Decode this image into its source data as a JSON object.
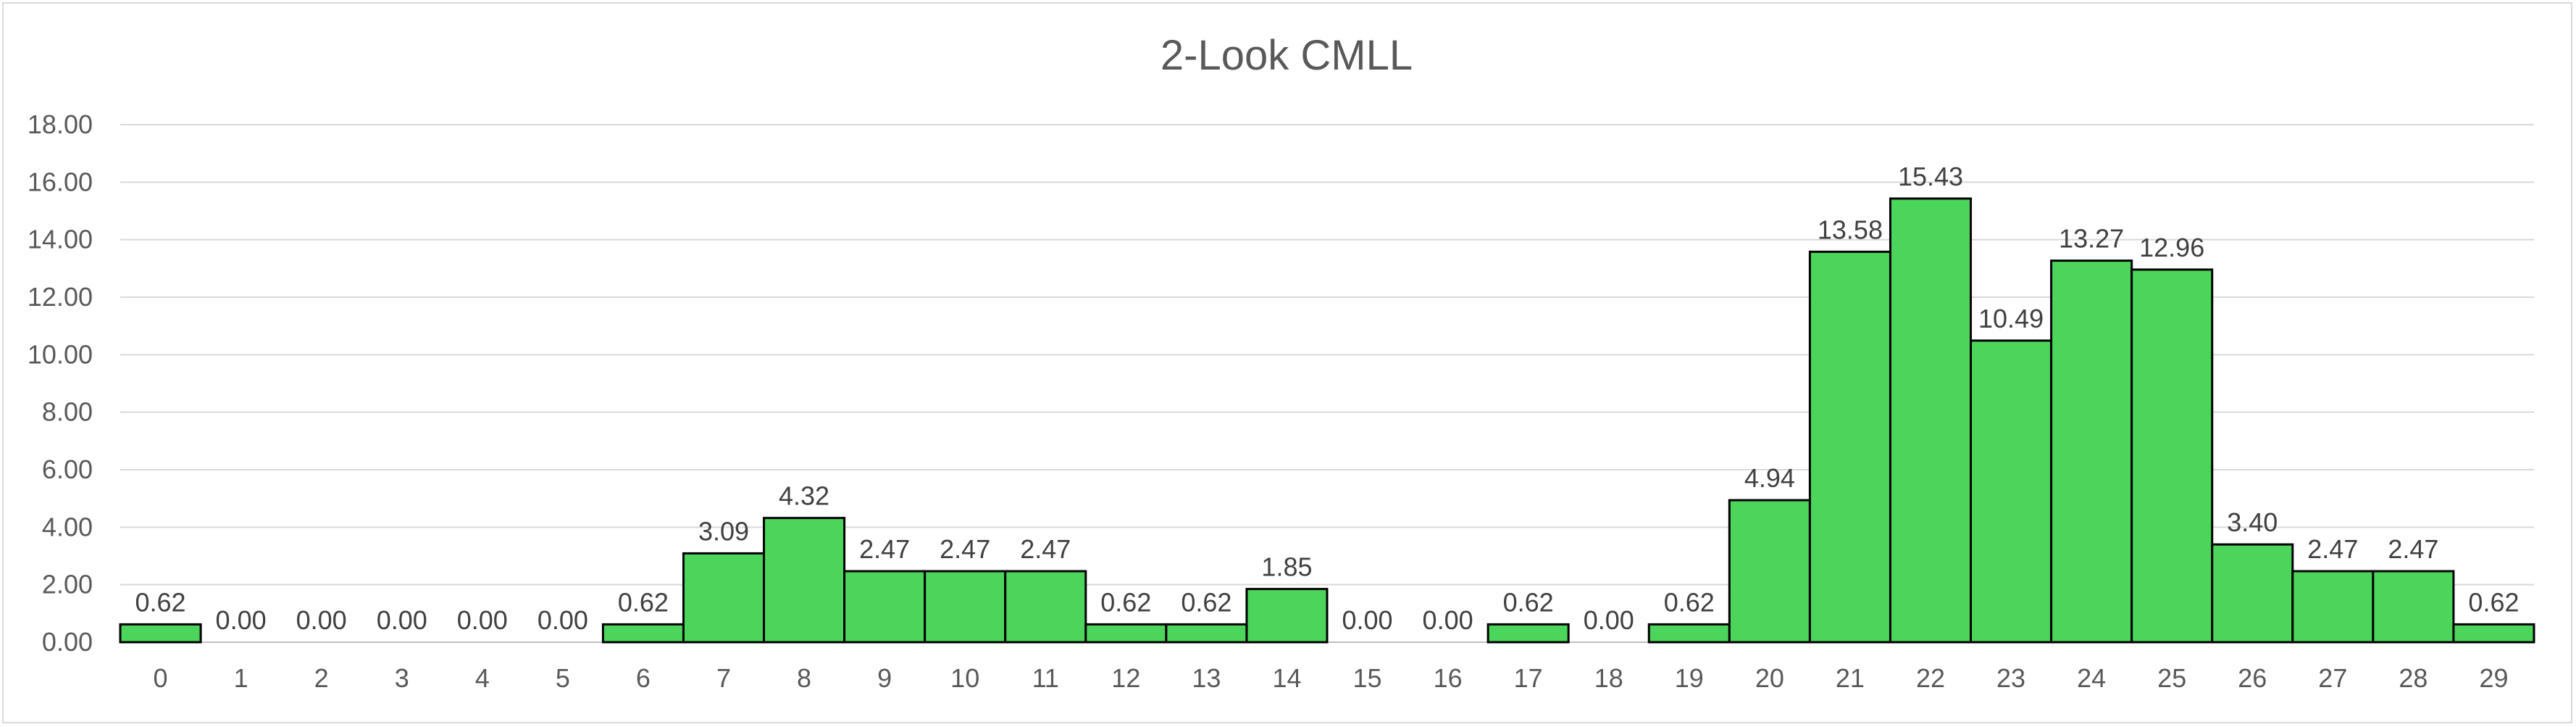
{
  "chart_data": {
    "type": "bar",
    "title": "2-Look CMLL",
    "xlabel": "",
    "ylabel": "",
    "ylim": [
      0,
      18
    ],
    "yticks": [
      "0.00",
      "2.00",
      "4.00",
      "6.00",
      "8.00",
      "10.00",
      "12.00",
      "14.00",
      "16.00",
      "18.00"
    ],
    "categories": [
      "0",
      "1",
      "2",
      "3",
      "4",
      "5",
      "6",
      "7",
      "8",
      "9",
      "10",
      "11",
      "12",
      "13",
      "14",
      "15",
      "16",
      "17",
      "18",
      "19",
      "20",
      "21",
      "22",
      "23",
      "24",
      "25",
      "26",
      "27",
      "28",
      "29"
    ],
    "values": [
      0.62,
      0.0,
      0.0,
      0.0,
      0.0,
      0.0,
      0.62,
      3.09,
      4.32,
      2.47,
      2.47,
      2.47,
      0.62,
      0.62,
      1.85,
      0.0,
      0.0,
      0.62,
      0.0,
      0.62,
      4.94,
      13.58,
      15.43,
      10.49,
      13.27,
      12.96,
      3.4,
      2.47,
      2.47,
      0.62
    ],
    "value_labels": [
      "0.62",
      "0.00",
      "0.00",
      "0.00",
      "0.00",
      "0.00",
      "0.62",
      "3.09",
      "4.32",
      "2.47",
      "2.47",
      "2.47",
      "0.62",
      "0.62",
      "1.85",
      "0.00",
      "0.00",
      "0.62",
      "0.00",
      "0.62",
      "4.94",
      "13.58",
      "15.43",
      "10.49",
      "13.27",
      "12.96",
      "3.40",
      "2.47",
      "2.47",
      "0.62"
    ],
    "grid": true,
    "legend": "none",
    "colors": {
      "bar_fill": "#4cd55b",
      "bar_stroke": "#000000",
      "gridline": "#d9d9d9",
      "text": "#595959"
    }
  }
}
